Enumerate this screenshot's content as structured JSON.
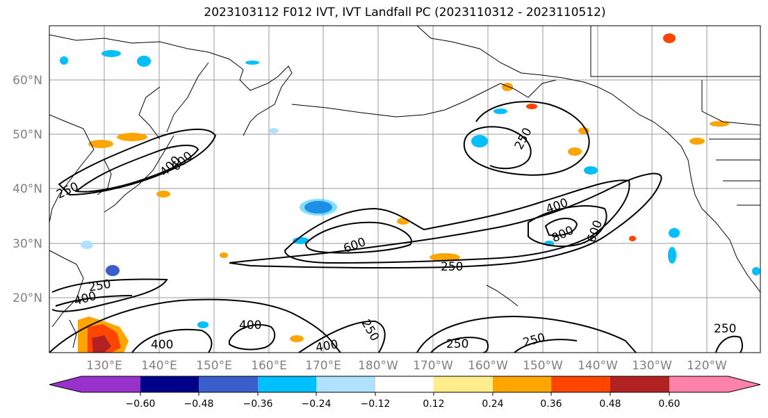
{
  "title": "2023103112 F012 IVT, IVT Landfall PC (2023110312 - 2023110512)",
  "gridlines": {
    "lon_labels": [
      "130°E",
      "140°E",
      "150°E",
      "160°E",
      "170°E",
      "180°W",
      "170°W",
      "160°W",
      "150°W",
      "140°W",
      "130°W",
      "120°W"
    ],
    "lat_labels": [
      "60°N",
      "50°N",
      "40°N",
      "30°N",
      "20°N"
    ]
  },
  "contour_labels": [
    "250",
    "400",
    "600",
    "800",
    "400",
    "600",
    "250",
    "250",
    "400",
    "400",
    "250",
    "400",
    "400",
    "250",
    "250",
    "250",
    "250",
    "600"
  ],
  "colorbar": {
    "colors": [
      "#9932cc",
      "#00008b",
      "#3a5fcd",
      "#00bfff",
      "#b0e2ff",
      "#ffffff",
      "#ffec8b",
      "#ffa500",
      "#ff4500",
      "#b22222",
      "#ff82ab"
    ],
    "tick_labels": [
      "−0.60",
      "−0.48",
      "−0.36",
      "−0.24",
      "−0.12",
      "0.12",
      "0.24",
      "0.36",
      "0.48",
      "0.60"
    ]
  }
}
